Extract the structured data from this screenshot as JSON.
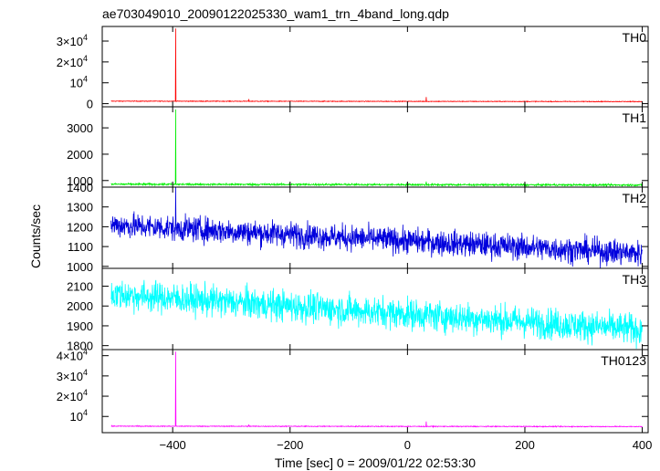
{
  "chart_data": {
    "type": "line",
    "title": "ae703049010_20090122025330_wam1_trn_4band_long.qdp",
    "xlabel": "Time [sec] 0 = 2009/01/22 02:53:30",
    "ylabel": "Counts/sec",
    "xlim": [
      -520,
      410
    ],
    "x_ticks": [
      -400,
      -200,
      0,
      200,
      400
    ],
    "x_tick_labels": [
      "−400",
      "−200",
      "0",
      "200",
      "400"
    ],
    "x_start": -505,
    "x_end": 400,
    "panels": [
      {
        "name": "TH0",
        "color": "#ff0000",
        "ylim": [
          -1500,
          37000
        ],
        "y_ticks": [
          0,
          10000,
          20000,
          30000
        ],
        "y_tick_labels": [
          {
            "mant": "0",
            "exp": ""
          },
          {
            "mant": "10",
            "exp": "4"
          },
          {
            "mant": "2×10",
            "exp": "4"
          },
          {
            "mant": "3×10",
            "exp": "4"
          }
        ],
        "baseline_start": 1200,
        "baseline_end": 1000,
        "noise": 120,
        "spikes": [
          {
            "x": -395,
            "y": 36000
          },
          {
            "x": -270,
            "y": 2200
          },
          {
            "x": 32,
            "y": 3200
          }
        ]
      },
      {
        "name": "TH1",
        "color": "#00ee00",
        "ylim": [
          750,
          3800
        ],
        "y_ticks": [
          1000,
          2000,
          3000
        ],
        "y_tick_labels": [
          {
            "mant": "1000",
            "exp": ""
          },
          {
            "mant": "2000",
            "exp": ""
          },
          {
            "mant": "3000",
            "exp": ""
          }
        ],
        "baseline_start": 860,
        "baseline_end": 830,
        "noise": 25,
        "spikes": [
          {
            "x": -395,
            "y": 3700
          },
          {
            "x": 32,
            "y": 960
          }
        ]
      },
      {
        "name": "TH2",
        "color": "#0000dd",
        "ylim": [
          990,
          1400
        ],
        "y_ticks": [
          1000,
          1100,
          1200,
          1300,
          1400
        ],
        "y_tick_labels": [
          {
            "mant": "1000",
            "exp": ""
          },
          {
            "mant": "1100",
            "exp": ""
          },
          {
            "mant": "1200",
            "exp": ""
          },
          {
            "mant": "1300",
            "exp": ""
          },
          {
            "mant": "1400",
            "exp": ""
          }
        ],
        "baseline_start": 1210,
        "baseline_end": 1065,
        "noise": 45,
        "spikes": [
          {
            "x": -395,
            "y": 1400
          }
        ]
      },
      {
        "name": "TH3",
        "color": "#00ffff",
        "ylim": [
          1780,
          2190
        ],
        "y_ticks": [
          1800,
          1900,
          2000,
          2100
        ],
        "y_tick_labels": [
          {
            "mant": "1800",
            "exp": ""
          },
          {
            "mant": "1900",
            "exp": ""
          },
          {
            "mant": "2000",
            "exp": ""
          },
          {
            "mant": "2100",
            "exp": ""
          }
        ],
        "baseline_start": 2060,
        "baseline_end": 1880,
        "noise": 55,
        "spikes": []
      },
      {
        "name": "TH0123",
        "color": "#ff00ff",
        "ylim": [
          2000,
          43000
        ],
        "y_ticks": [
          10000,
          20000,
          30000,
          40000
        ],
        "y_tick_labels": [
          {
            "mant": "10",
            "exp": "4"
          },
          {
            "mant": "2×10",
            "exp": "4"
          },
          {
            "mant": "3×10",
            "exp": "4"
          },
          {
            "mant": "4×10",
            "exp": "4"
          }
        ],
        "baseline_start": 5200,
        "baseline_end": 5000,
        "noise": 150,
        "spikes": [
          {
            "x": -395,
            "y": 42000
          },
          {
            "x": -270,
            "y": 6000
          },
          {
            "x": 32,
            "y": 7500
          }
        ]
      }
    ],
    "grid": false,
    "legend": "none"
  }
}
